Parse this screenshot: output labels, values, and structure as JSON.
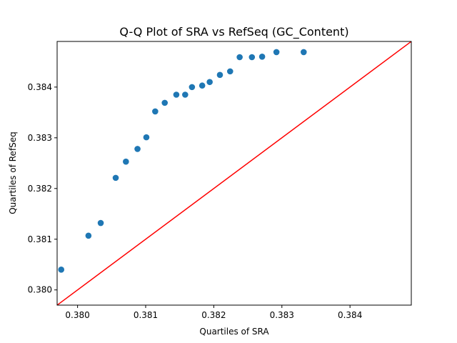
{
  "chart_data": {
    "type": "scatter",
    "title": "Q-Q Plot of SRA vs RefSeq (GC_Content)",
    "xlabel": "Quartiles of SRA",
    "ylabel": "Quartiles of RefSeq",
    "xlim": [
      0.3797,
      0.3849
    ],
    "ylim": [
      0.3797,
      0.3849
    ],
    "x_ticks": [
      {
        "value": 0.38,
        "label": "0.380"
      },
      {
        "value": 0.381,
        "label": "0.381"
      },
      {
        "value": 0.382,
        "label": "0.382"
      },
      {
        "value": 0.383,
        "label": "0.383"
      },
      {
        "value": 0.384,
        "label": "0.384"
      }
    ],
    "y_ticks": [
      {
        "value": 0.38,
        "label": "0.380"
      },
      {
        "value": 0.381,
        "label": "0.381"
      },
      {
        "value": 0.382,
        "label": "0.382"
      },
      {
        "value": 0.383,
        "label": "0.383"
      },
      {
        "value": 0.384,
        "label": "0.384"
      }
    ],
    "grid": false,
    "marker_color": "#1f77b4",
    "reference_line_color": "#ff0000",
    "reference_line": [
      [
        0.3797,
        0.3797
      ],
      [
        0.3849,
        0.3849
      ]
    ],
    "points": [
      {
        "x": 0.37976,
        "y": 0.3804
      },
      {
        "x": 0.38016,
        "y": 0.38107
      },
      {
        "x": 0.38034,
        "y": 0.38132
      },
      {
        "x": 0.38056,
        "y": 0.38221
      },
      {
        "x": 0.38071,
        "y": 0.38253
      },
      {
        "x": 0.38088,
        "y": 0.38278
      },
      {
        "x": 0.38101,
        "y": 0.38301
      },
      {
        "x": 0.38114,
        "y": 0.38352
      },
      {
        "x": 0.38128,
        "y": 0.38369
      },
      {
        "x": 0.38145,
        "y": 0.38385
      },
      {
        "x": 0.38158,
        "y": 0.38385
      },
      {
        "x": 0.38168,
        "y": 0.384
      },
      {
        "x": 0.38183,
        "y": 0.38403
      },
      {
        "x": 0.38194,
        "y": 0.3841
      },
      {
        "x": 0.38209,
        "y": 0.38424
      },
      {
        "x": 0.38224,
        "y": 0.38431
      },
      {
        "x": 0.38238,
        "y": 0.38459
      },
      {
        "x": 0.38256,
        "y": 0.38459
      },
      {
        "x": 0.38271,
        "y": 0.3846
      },
      {
        "x": 0.38292,
        "y": 0.38469
      },
      {
        "x": 0.38332,
        "y": 0.38469
      }
    ]
  }
}
